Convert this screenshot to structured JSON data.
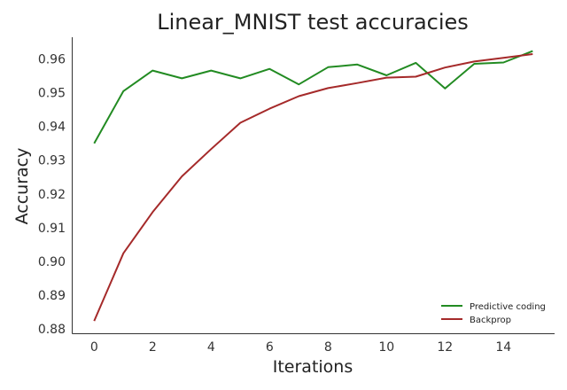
{
  "chart_data": {
    "type": "line",
    "title": "Linear_MNIST test accuracies",
    "xlabel": "Iterations",
    "ylabel": "Accuracy",
    "xlim": [
      -0.75,
      15.75
    ],
    "ylim": [
      0.8785,
      0.9665
    ],
    "x": [
      0,
      1,
      2,
      3,
      4,
      5,
      6,
      7,
      8,
      9,
      10,
      11,
      12,
      13,
      14,
      15
    ],
    "xticks": [
      0,
      2,
      4,
      6,
      8,
      10,
      12,
      14
    ],
    "xtick_labels": [
      "0",
      "2",
      "4",
      "6",
      "8",
      "10",
      "12",
      "14"
    ],
    "yticks": [
      0.88,
      0.89,
      0.9,
      0.91,
      0.92,
      0.93,
      0.94,
      0.95,
      0.96
    ],
    "ytick_labels": [
      "0.88",
      "0.89",
      "0.90",
      "0.91",
      "0.92",
      "0.93",
      "0.94",
      "0.95",
      "0.96"
    ],
    "grid": false,
    "legend_position": "lower-right",
    "series": [
      {
        "name": "Predictive coding",
        "color": "#228b22",
        "values": [
          0.935,
          0.9505,
          0.9566,
          0.9543,
          0.9566,
          0.9543,
          0.9571,
          0.9525,
          0.9576,
          0.9584,
          0.9552,
          0.9589,
          0.9513,
          0.9586,
          0.959,
          0.9624
        ]
      },
      {
        "name": "Backprop",
        "color": "#a52a2a",
        "values": [
          0.8823,
          0.9024,
          0.9146,
          0.9252,
          0.9333,
          0.9411,
          0.9453,
          0.949,
          0.9514,
          0.9529,
          0.9545,
          0.9548,
          0.9575,
          0.9593,
          0.9604,
          0.9615
        ]
      }
    ]
  }
}
